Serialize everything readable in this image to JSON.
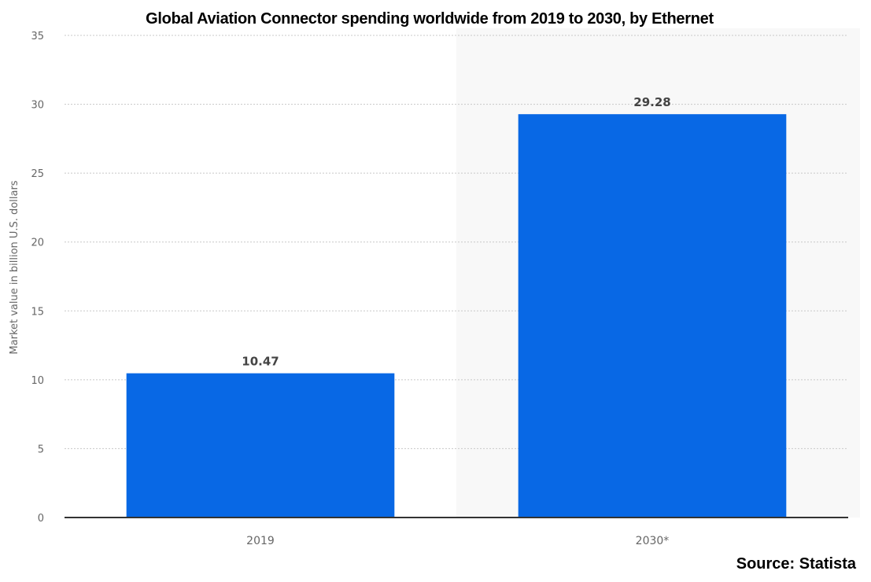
{
  "chart_data": {
    "type": "bar",
    "title": "Global Aviation Connector spending worldwide from 2019 to 2030, by Ethernet",
    "xlabel": "",
    "ylabel": "Market value in billion U.S. dollars",
    "categories": [
      "2019",
      "2030*"
    ],
    "values": [
      10.47,
      29.28
    ],
    "data_labels": [
      "10.47",
      "29.28"
    ],
    "ylim": [
      0,
      35
    ],
    "yticks": [
      0,
      5,
      10,
      15,
      20,
      25,
      30,
      35
    ],
    "grid": true,
    "highlighted_category": "2030*",
    "bar_color": "#0868e5",
    "highlight_background": "#f8f8f8",
    "source": "Source: Statista"
  }
}
